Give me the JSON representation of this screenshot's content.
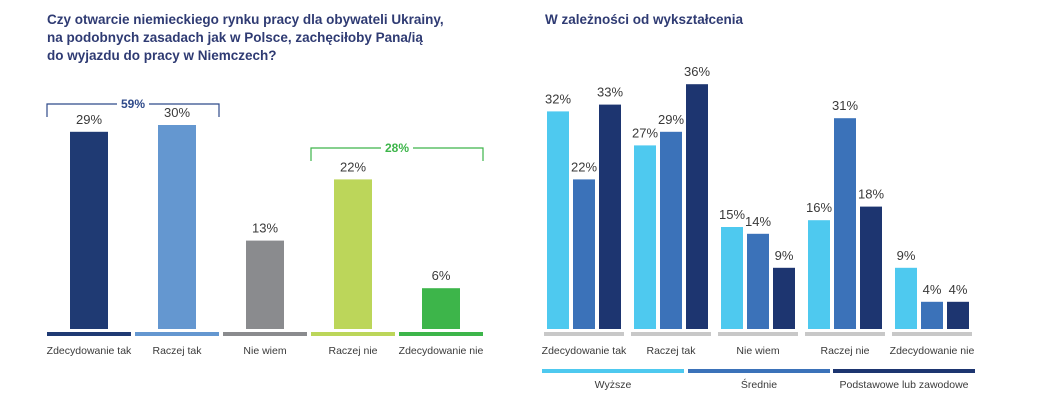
{
  "colors": {
    "title": "#2f3b73",
    "bracket_positive": "#2f4a8a",
    "bracket_negative": "#3db54a",
    "axis_line": "#c8c8c8"
  },
  "chart_data": [
    {
      "type": "bar",
      "title_lines": [
        "Czy otwarcie niemieckiego rynku pracy dla obywateli Ukrainy,",
        "na podobnych zasadach jak w Polsce, zachęciłoby Pana/ią",
        "do wyjazdu do pracy w Niemczech?"
      ],
      "categories": [
        "Zdecydowanie tak",
        "Raczej tak",
        "Nie wiem",
        "Raczej nie",
        "Zdecydowanie nie"
      ],
      "values": [
        29,
        30,
        13,
        22,
        6
      ],
      "value_labels": [
        "29%",
        "30%",
        "13%",
        "22%",
        "6%"
      ],
      "bar_colors": [
        "#1f3a73",
        "#6497d0",
        "#8a8b8e",
        "#bcd65a",
        "#3db54a"
      ],
      "ylim": [
        0,
        36
      ],
      "brackets": [
        {
          "label": "59%",
          "from": 0,
          "to": 1,
          "color": "#2f4a8a"
        },
        {
          "label": "28%",
          "from": 3,
          "to": 4,
          "color": "#3db54a"
        }
      ]
    },
    {
      "type": "bar",
      "title_lines": [
        "W zależności od wykształcenia"
      ],
      "categories": [
        "Zdecydowanie tak",
        "Raczej tak",
        "Nie wiem",
        "Raczej nie",
        "Zdecydowanie nie"
      ],
      "series": [
        {
          "name": "Wyższe",
          "values": [
            32,
            27,
            15,
            16,
            9
          ],
          "labels": [
            "32%",
            "27%",
            "15%",
            "16%",
            "9%"
          ],
          "color": "#4ec9ef"
        },
        {
          "name": "Średnie",
          "values": [
            22,
            29,
            14,
            31,
            4
          ],
          "labels": [
            "22%",
            "29%",
            "14%",
            "31%",
            "4%"
          ],
          "color": "#3b72b9"
        },
        {
          "name": "Podstawowe lub zawodowe",
          "values": [
            33,
            36,
            9,
            18,
            4
          ],
          "labels": [
            "33%",
            "36%",
            "9%",
            "18%",
            "4%"
          ],
          "color": "#1d3570"
        }
      ],
      "ylim": [
        0,
        36
      ],
      "legend_position": "bottom"
    }
  ]
}
